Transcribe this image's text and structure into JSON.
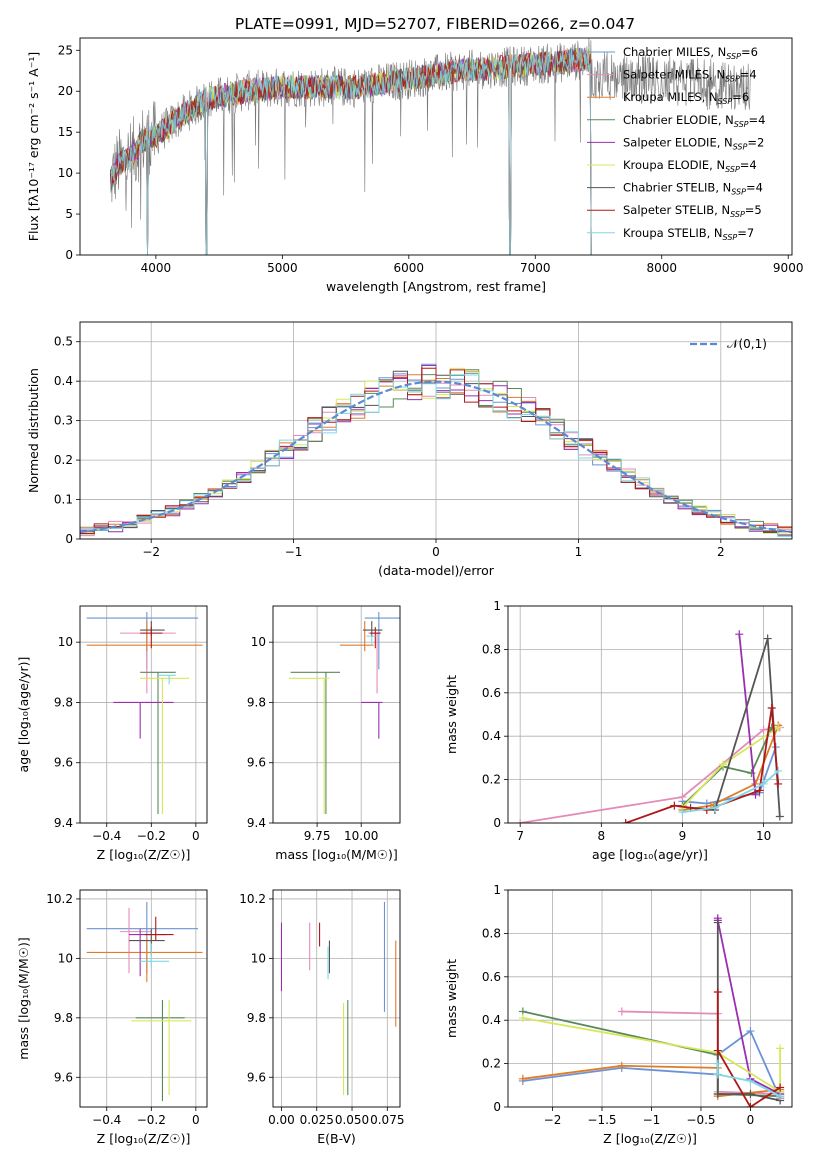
{
  "title": "PLATE=0991, MJD=52707, FIBERID=0266, z=0.047",
  "series_styles": [
    {
      "name": "Chabrier MILES",
      "nssp": "6",
      "color": "#6b93d6"
    },
    {
      "name": "Salpeter MILES",
      "nssp": "4",
      "color": "#e48cb8"
    },
    {
      "name": "Kroupa MILES",
      "nssp": "6",
      "color": "#e07b2a"
    },
    {
      "name": "Chabrier ELODIE",
      "nssp": "4",
      "color": "#5a8a5a"
    },
    {
      "name": "Salpeter ELODIE",
      "nssp": "2",
      "color": "#9a2fb0"
    },
    {
      "name": "Kroupa ELODIE",
      "nssp": "4",
      "color": "#d6e85a"
    },
    {
      "name": "Chabrier STELIB",
      "nssp": "4",
      "color": "#555555"
    },
    {
      "name": "Salpeter STELIB",
      "nssp": "5",
      "color": "#b01818"
    },
    {
      "name": "Kroupa STELIB",
      "nssp": "7",
      "color": "#7fd8e6"
    }
  ],
  "chart_data": [
    {
      "id": "spectrum",
      "type": "line",
      "title": "PLATE=0991, MJD=52707, FIBERID=0266, z=0.047",
      "xlabel": "wavelength [Angstrom, rest frame]",
      "ylabel": "Flux [fλ10⁻¹⁷ erg cm⁻² s⁻¹ A⁻¹]",
      "xlim": [
        3400,
        9030
      ],
      "ylim": [
        0,
        26.5
      ],
      "xticks": [
        4000,
        5000,
        6000,
        7000,
        8000,
        9000
      ],
      "yticks": [
        0,
        5,
        10,
        15,
        20,
        25
      ],
      "legend_position": "right",
      "x_range_data": [
        3640,
        8700
      ],
      "y_profile": [
        [
          3640,
          9
        ],
        [
          3700,
          11
        ],
        [
          3800,
          12
        ],
        [
          3900,
          14
        ],
        [
          4000,
          14.5
        ],
        [
          4200,
          17
        ],
        [
          4400,
          19
        ],
        [
          4700,
          20
        ],
        [
          5000,
          20.5
        ],
        [
          5300,
          20.5
        ],
        [
          5600,
          20.5
        ],
        [
          6000,
          21.5
        ],
        [
          6400,
          22.5
        ],
        [
          6800,
          23
        ],
        [
          7200,
          23.5
        ],
        [
          7440,
          24
        ]
      ],
      "model_end_wavelength": 7440,
      "absorption_dips": [
        3934,
        4400,
        6800
      ],
      "grid": false
    },
    {
      "id": "residuals",
      "type": "step",
      "xlabel": "(data-model)/error",
      "ylabel": "Normed distribution",
      "xlim": [
        -2.5,
        2.5
      ],
      "ylim": [
        0,
        0.55
      ],
      "xticks": [
        -2,
        -1,
        0,
        1,
        2
      ],
      "yticks": [
        0,
        0.1,
        0.2,
        0.3,
        0.4,
        0.5
      ],
      "bin_width": 0.1,
      "reference_curve": {
        "name": "𝒩(0,1)",
        "mean": 0,
        "sigma": 1,
        "color": "#5a8ad6"
      },
      "grid": true,
      "legend_position": "top-right"
    },
    {
      "id": "age-vs-z",
      "type": "errorbar",
      "xlabel": "Z [log₁₀(Z/Z☉)]",
      "ylabel": "age  [log₁₀(age/yr)]",
      "xlim": [
        -0.52,
        0.05
      ],
      "ylim": [
        9.4,
        10.12
      ],
      "xticks": [
        -0.4,
        -0.2,
        0.0
      ],
      "yticks": [
        9.4,
        9.6,
        9.8,
        10.0
      ],
      "points": [
        {
          "x": -0.22,
          "y": 10.08,
          "xerr": [
            0.27,
            0.23
          ],
          "yerr": [
            0.17,
            0.02
          ]
        },
        {
          "x": -0.22,
          "y": 10.03,
          "xerr": [
            0.12,
            0.13
          ],
          "yerr": [
            0.2,
            0.0
          ]
        },
        {
          "x": -0.22,
          "y": 9.99,
          "xerr": [
            0.27,
            0.25
          ],
          "yerr": [
            0.02,
            0.08
          ]
        },
        {
          "x": -0.17,
          "y": 9.9,
          "xerr": [
            0.08,
            0.08
          ],
          "yerr": [
            0.47,
            0.0
          ]
        },
        {
          "x": -0.25,
          "y": 9.8,
          "xerr": [
            0.12,
            0.15
          ],
          "yerr": [
            0.12,
            0.0
          ]
        },
        {
          "x": -0.15,
          "y": 9.88,
          "xerr": [
            0.1,
            0.12
          ],
          "yerr": [
            0.45,
            0.0
          ]
        },
        {
          "x": -0.2,
          "y": 10.04,
          "xerr": [
            0.05,
            0.06
          ],
          "yerr": [
            0.02,
            0.03
          ]
        },
        {
          "x": -0.2,
          "y": 10.03,
          "xerr": [
            0.05,
            0.05
          ],
          "yerr": [
            0.05,
            0.02
          ]
        },
        {
          "x": -0.12,
          "y": 9.89,
          "xerr": [
            0.05,
            0.03
          ],
          "yerr": [
            0.03,
            0.0
          ]
        }
      ],
      "grid": true
    },
    {
      "id": "age-vs-mass",
      "type": "errorbar",
      "xlabel": "mass [log₁₀(M/M☉)]",
      "ylabel": "",
      "xlim": [
        9.5,
        10.22
      ],
      "ylim": [
        9.4,
        10.12
      ],
      "xticks": [
        9.75,
        10.0
      ],
      "xtick_labels": [
        "9.75",
        "10.00"
      ],
      "yticks": [
        9.4,
        9.6,
        9.8,
        10.0
      ],
      "points": [
        {
          "x": 10.1,
          "y": 10.08,
          "xerr": [
            0.08,
            0.12
          ],
          "yerr": [
            0.17,
            0.02
          ]
        },
        {
          "x": 10.09,
          "y": 10.03,
          "xerr": [
            0.05,
            0.02
          ],
          "yerr": [
            0.2,
            0.0
          ]
        },
        {
          "x": 10.02,
          "y": 9.99,
          "xerr": [
            0.14,
            0.05
          ],
          "yerr": [
            0.02,
            0.08
          ]
        },
        {
          "x": 9.8,
          "y": 9.9,
          "xerr": [
            0.2,
            0.08
          ],
          "yerr": [
            0.47,
            0.0
          ]
        },
        {
          "x": 10.1,
          "y": 9.8,
          "xerr": [
            0.1,
            0.02
          ],
          "yerr": [
            0.12,
            0.0
          ]
        },
        {
          "x": 9.79,
          "y": 9.88,
          "xerr": [
            0.2,
            0.03
          ],
          "yerr": [
            0.45,
            0.0
          ]
        },
        {
          "x": 10.06,
          "y": 10.04,
          "xerr": [
            0.05,
            0.06
          ],
          "yerr": [
            0.02,
            0.03
          ]
        },
        {
          "x": 10.08,
          "y": 10.03,
          "xerr": [
            0.03,
            0.03
          ],
          "yerr": [
            0.05,
            0.02
          ]
        },
        {
          "x": 10.06,
          "y": 10.02,
          "xerr": [
            0.03,
            0.02
          ],
          "yerr": [
            0.03,
            0.0
          ]
        }
      ],
      "grid": true
    },
    {
      "id": "weight-vs-age",
      "type": "line",
      "xlabel": "age  [log₁₀(age/yr)]",
      "ylabel": "mass weight",
      "xlim": [
        6.85,
        10.35
      ],
      "ylim": [
        0,
        1
      ],
      "xticks": [
        7,
        8,
        9,
        10
      ],
      "yticks": [
        0,
        0.2,
        0.4,
        0.6,
        0.8,
        1.0
      ],
      "series": [
        {
          "x": [
            9.0,
            9.3,
            9.95,
            10.15
          ],
          "y": [
            0.1,
            0.09,
            0.14,
            0.35
          ]
        },
        {
          "x": [
            7.0,
            9.0,
            10.0,
            10.2
          ],
          "y": [
            0.0,
            0.12,
            0.43,
            0.44
          ]
        },
        {
          "x": [
            9.0,
            9.35,
            9.9,
            10.18
          ],
          "y": [
            0.06,
            0.08,
            0.18,
            0.45
          ]
        },
        {
          "x": [
            9.0,
            9.5,
            9.85,
            10.1
          ],
          "y": [
            0.08,
            0.26,
            0.23,
            0.44
          ]
        },
        {
          "x": [
            9.7,
            9.9
          ],
          "y": [
            0.87,
            0.13
          ]
        },
        {
          "x": [
            9.0,
            9.5,
            10.18
          ],
          "y": [
            0.07,
            0.27,
            0.44
          ]
        },
        {
          "x": [
            9.1,
            9.4,
            10.05,
            10.2
          ],
          "y": [
            0.07,
            0.06,
            0.85,
            0.03
          ]
        },
        {
          "x": [
            8.3,
            8.9,
            9.3,
            9.95,
            10.1,
            10.18
          ],
          "y": [
            0.0,
            0.08,
            0.06,
            0.15,
            0.53,
            0.18
          ]
        },
        {
          "x": [
            9.0,
            9.4,
            10.0,
            10.18
          ],
          "y": [
            0.05,
            0.07,
            0.18,
            0.24
          ]
        }
      ],
      "grid": true
    },
    {
      "id": "mass-vs-z",
      "type": "errorbar",
      "xlabel": "Z [log₁₀(Z/Z☉)]",
      "ylabel": "mass [log₁₀(M/M☉)]",
      "xlim": [
        -0.52,
        0.05
      ],
      "ylim": [
        9.5,
        10.23
      ],
      "xticks": [
        -0.4,
        -0.2,
        0.0
      ],
      "yticks": [
        9.6,
        9.8,
        10.0,
        10.2
      ],
      "points": [
        {
          "x": -0.22,
          "y": 10.1,
          "xerr": [
            0.27,
            0.23
          ],
          "yerr": [
            0.15,
            0.09
          ]
        },
        {
          "x": -0.3,
          "y": 10.09,
          "xerr": [
            0.04,
            0.1
          ],
          "yerr": [
            0.14,
            0.08
          ]
        },
        {
          "x": -0.22,
          "y": 10.02,
          "xerr": [
            0.27,
            0.25
          ],
          "yerr": [
            0.1,
            0.05
          ]
        },
        {
          "x": -0.15,
          "y": 9.8,
          "xerr": [
            0.12,
            0.1
          ],
          "yerr": [
            0.28,
            0.06
          ]
        },
        {
          "x": -0.25,
          "y": 10.08,
          "xerr": [
            0.05,
            0.12
          ],
          "yerr": [
            0.14,
            0.02
          ]
        },
        {
          "x": -0.12,
          "y": 9.79,
          "xerr": [
            0.17,
            0.1
          ],
          "yerr": [
            0.25,
            0.07
          ]
        },
        {
          "x": -0.2,
          "y": 10.06,
          "xerr": [
            0.1,
            0.06
          ],
          "yerr": [
            0.05,
            0.04
          ]
        },
        {
          "x": -0.18,
          "y": 10.08,
          "xerr": [
            0.05,
            0.08
          ],
          "yerr": [
            0.02,
            0.06
          ]
        },
        {
          "x": -0.2,
          "y": 9.99,
          "xerr": [
            0.05,
            0.08
          ],
          "yerr": [
            0.02,
            0.06
          ]
        }
      ],
      "grid": true
    },
    {
      "id": "mass-vs-ebv",
      "type": "errorbar",
      "xlabel": "E(B-V)",
      "ylabel": "",
      "xlim": [
        -0.006,
        0.084
      ],
      "ylim": [
        9.5,
        10.23
      ],
      "xticks": [
        0.0,
        0.025,
        0.05,
        0.075
      ],
      "xtick_labels": [
        "0.00",
        "0.025",
        "0.050",
        "0.075"
      ],
      "yticks": [
        9.6,
        9.8,
        10.0,
        10.2
      ],
      "points": [
        {
          "x": 0.073,
          "y": 10.0,
          "yerr": [
            0.18,
            0.19
          ]
        },
        {
          "x": 0.02,
          "y": 10.06,
          "yerr": [
            0.1,
            0.06
          ]
        },
        {
          "x": 0.081,
          "y": 9.91,
          "yerr": [
            0.14,
            0.15
          ]
        },
        {
          "x": 0.047,
          "y": 9.7,
          "yerr": [
            0.16,
            0.16
          ]
        },
        {
          "x": 0.0,
          "y": 10.0,
          "yerr": [
            0.11,
            0.12
          ]
        },
        {
          "x": 0.044,
          "y": 9.69,
          "yerr": [
            0.15,
            0.16
          ]
        },
        {
          "x": 0.034,
          "y": 10.0,
          "yerr": [
            0.05,
            0.06
          ]
        },
        {
          "x": 0.027,
          "y": 10.08,
          "yerr": [
            0.04,
            0.04
          ]
        },
        {
          "x": 0.033,
          "y": 9.99,
          "yerr": [
            0.06,
            0.05
          ]
        }
      ],
      "grid": true
    },
    {
      "id": "weight-vs-z",
      "type": "line",
      "xlabel": "Z [log₁₀(Z/Z☉)]",
      "ylabel": "mass weight",
      "xlim": [
        -2.45,
        0.42
      ],
      "ylim": [
        0,
        1
      ],
      "xticks": [
        -2.0,
        -1.5,
        -1.0,
        -0.5,
        0.0
      ],
      "yticks": [
        0,
        0.2,
        0.4,
        0.6,
        0.8,
        1.0
      ],
      "series": [
        {
          "x": [
            -2.3,
            -1.3,
            -0.33,
            -0.33,
            0.0,
            0.3,
            0.3
          ],
          "y": [
            0.12,
            0.18,
            0.15,
            0.24,
            0.35,
            0.04,
            0.04
          ]
        },
        {
          "x": [
            -1.3,
            -0.33,
            -0.33,
            0.3,
            0.3
          ],
          "y": [
            0.44,
            0.43,
            0.07,
            0.06,
            0.04
          ]
        },
        {
          "x": [
            -2.3,
            -1.3,
            -0.33,
            -0.33,
            0.3,
            0.3
          ],
          "y": [
            0.13,
            0.19,
            0.18,
            0.05,
            0.08,
            0.06
          ]
        },
        {
          "x": [
            -2.3,
            -0.33,
            -0.33,
            0.3,
            0.3
          ],
          "y": [
            0.44,
            0.24,
            0.06,
            0.05,
            0.07
          ]
        },
        {
          "x": [
            -0.33,
            -0.33,
            0.0,
            0.3
          ],
          "y": [
            0.87,
            0.86,
            0.13,
            0.06
          ]
        },
        {
          "x": [
            -2.3,
            -0.33,
            0.3,
            0.3
          ],
          "y": [
            0.41,
            0.25,
            0.07,
            0.27
          ]
        },
        {
          "x": [
            -0.33,
            -0.33,
            0.0,
            0.3
          ],
          "y": [
            0.85,
            0.06,
            0.06,
            0.03
          ]
        },
        {
          "x": [
            -0.33,
            -0.33,
            0.0,
            0.3
          ],
          "y": [
            0.53,
            0.26,
            0.0,
            0.09
          ]
        },
        {
          "x": [
            -0.33,
            -0.33,
            0.0,
            0.3
          ],
          "y": [
            0.2,
            0.15,
            0.12,
            0.05
          ]
        }
      ],
      "grid": true
    }
  ]
}
